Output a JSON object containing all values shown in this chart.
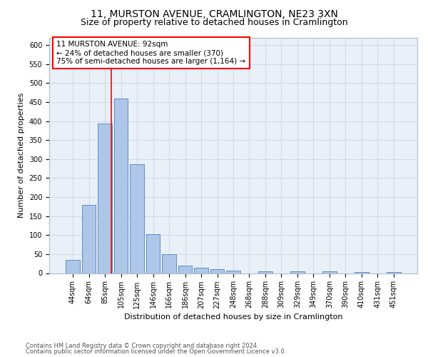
{
  "title": "11, MURSTON AVENUE, CRAMLINGTON, NE23 3XN",
  "subtitle": "Size of property relative to detached houses in Cramlington",
  "xlabel": "Distribution of detached houses by size in Cramlington",
  "ylabel": "Number of detached properties",
  "footer_line1": "Contains HM Land Registry data © Crown copyright and database right 2024.",
  "footer_line2": "Contains public sector information licensed under the Open Government Licence v3.0.",
  "categories": [
    "44sqm",
    "64sqm",
    "85sqm",
    "105sqm",
    "125sqm",
    "146sqm",
    "166sqm",
    "186sqm",
    "207sqm",
    "227sqm",
    "248sqm",
    "268sqm",
    "288sqm",
    "309sqm",
    "329sqm",
    "349sqm",
    "370sqm",
    "390sqm",
    "410sqm",
    "431sqm",
    "451sqm"
  ],
  "values": [
    35,
    180,
    393,
    460,
    287,
    103,
    50,
    20,
    15,
    10,
    6,
    0,
    5,
    0,
    5,
    0,
    5,
    0,
    3,
    0,
    3
  ],
  "bar_color": "#aec6e8",
  "bar_edge_color": "#5b8fc9",
  "annotation_title": "11 MURSTON AVENUE: 92sqm",
  "annotation_line1": "← 24% of detached houses are smaller (370)",
  "annotation_line2": "75% of semi-detached houses are larger (1,164) →",
  "red_line_x": 2.4,
  "ylim": [
    0,
    620
  ],
  "yticks": [
    0,
    50,
    100,
    150,
    200,
    250,
    300,
    350,
    400,
    450,
    500,
    550,
    600
  ],
  "grid_color": "#d0d8e8",
  "bg_color": "#eaf0f8",
  "title_fontsize": 10,
  "subtitle_fontsize": 9,
  "axis_label_fontsize": 8,
  "tick_fontsize": 7,
  "annotation_fontsize": 7.5,
  "footer_fontsize": 6
}
